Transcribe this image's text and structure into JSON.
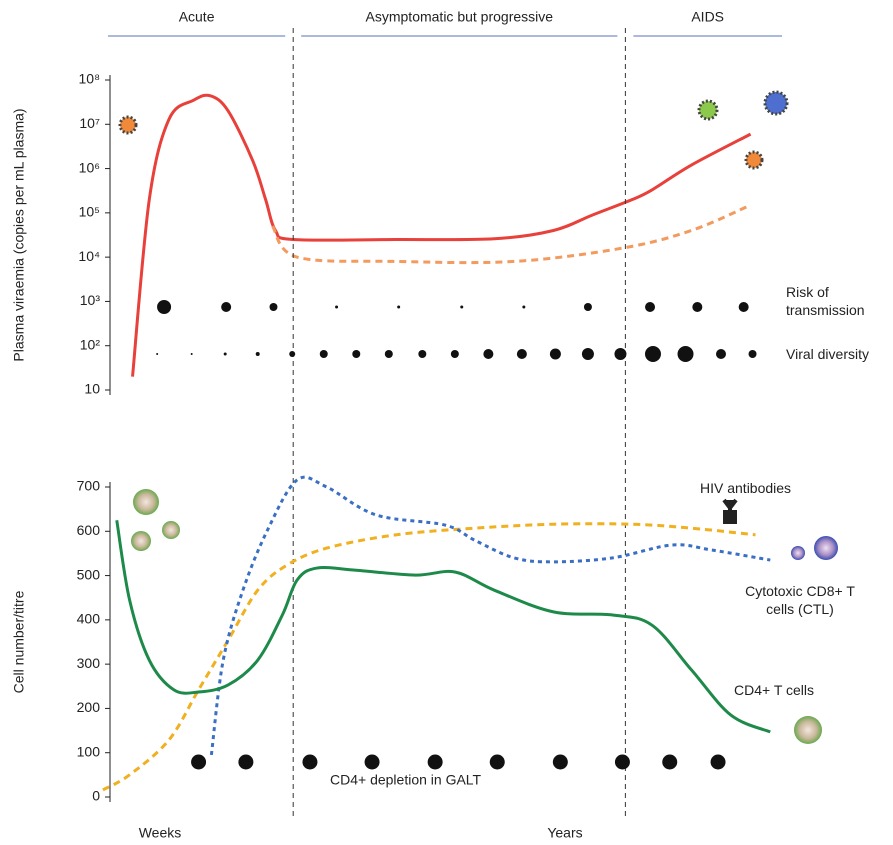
{
  "chart_data": [
    {
      "type": "line",
      "ylabel": "Plasma viraemia  (copies per mL plasma)",
      "log_scale": true,
      "ylim": [
        10,
        100000000
      ],
      "yticks": [
        {
          "value": 10,
          "label": "10"
        },
        {
          "value": 100,
          "label": "10²"
        },
        {
          "value": 1000,
          "label": "10³"
        },
        {
          "value": 10000,
          "label": "10⁴"
        },
        {
          "value": 100000,
          "label": "10⁵"
        },
        {
          "value": 1000000,
          "label": "10⁶"
        },
        {
          "value": 10000000,
          "label": "10⁷"
        },
        {
          "value": 100000000,
          "label": "10⁸"
        }
      ],
      "xlim": [
        0,
        700
      ],
      "phases": [
        "Acute",
        "Asymptomatic but progressive",
        "AIDS"
      ],
      "phase_boundaries": [
        196,
        533
      ],
      "series": [
        {
          "color": "#e8403a",
          "style": "solid",
          "x": [
            33,
            50,
            70,
            95,
            112,
            130,
            155,
            168,
            178,
            196,
            300,
            400,
            460,
            500,
            540,
            560,
            600,
            660
          ],
          "values": [
            20,
            200000,
            13000000,
            35000000,
            44000000,
            20000000,
            1500000,
            200000,
            40000,
            25000,
            25000,
            26000,
            40000,
            90000,
            200000,
            330000,
            1200000,
            6000000
          ]
        },
        {
          "color": "#f39a5e",
          "style": "dashed",
          "x": [
            175,
            200,
            300,
            420,
            530,
            600,
            660
          ],
          "values": [
            50000,
            10000,
            8000,
            8000,
            16000,
            40000,
            150000
          ]
        }
      ],
      "dot_rows": [
        {
          "name": "Risk of transmission",
          "x": [
            65,
            128,
            176,
            240,
            303,
            367,
            430,
            495,
            558,
            606,
            653
          ],
          "values": [
            7,
            5,
            4,
            1.5,
            1.5,
            1.5,
            1.5,
            4,
            5,
            5,
            5
          ]
        },
        {
          "name": "Viral diversity",
          "x": [
            58,
            93,
            127,
            160,
            195,
            227,
            260,
            293,
            327,
            360,
            394,
            428,
            462,
            495,
            528,
            561,
            594,
            630,
            662
          ],
          "values": [
            1,
            1,
            1.5,
            2,
            3,
            4,
            4,
            4,
            4,
            4,
            5,
            5,
            5.5,
            6,
            6,
            8,
            8,
            5,
            4
          ]
        }
      ]
    },
    {
      "type": "line",
      "ylabel": "Cell number/titre",
      "ylim": [
        0,
        700
      ],
      "yticks": [
        0,
        100,
        200,
        300,
        400,
        500,
        600,
        700
      ],
      "xlim": [
        0,
        700
      ],
      "time_labels": [
        "Weeks",
        "Years"
      ],
      "series": [
        {
          "name": "HIV  antibodies",
          "color": "#f0b020",
          "style": "dashed",
          "x": [
            3,
            30,
            70,
            100,
            130,
            160,
            190,
            230,
            300,
            380,
            460,
            540,
            600,
            665
          ],
          "values": [
            16,
            50,
            129,
            242,
            354,
            467,
            524,
            562,
            592,
            607,
            616,
            616,
            607,
            592
          ]
        },
        {
          "name": "Cytotoxic CD8+ T cells (CTL)",
          "color": "#3a6fc4",
          "style": "dotted",
          "x": [
            113,
            125,
            145,
            170,
            200,
            230,
            280,
            350,
            380,
            420,
            460,
            520,
            580,
            620,
            680
          ],
          "values": [
            95,
            309,
            467,
            603,
            716,
            700,
            637,
            614,
            580,
            540,
            531,
            540,
            569,
            558,
            535
          ]
        },
        {
          "name": "CD4+ T cells",
          "color": "#1e8a4a",
          "style": "solid",
          "x": [
            17,
            30,
            50,
            75,
            100,
            130,
            160,
            185,
            200,
            220,
            260,
            320,
            360,
            400,
            460,
            520,
            560,
            600,
            640,
            680
          ],
          "values": [
            625,
            445,
            309,
            242,
            237,
            253,
            309,
            411,
            490,
            517,
            512,
            501,
            508,
            467,
            418,
            411,
            388,
            287,
            185,
            147
          ]
        }
      ],
      "dot_row": {
        "name": "CD4+ depletion in GALT",
        "x": [
          100,
          148,
          213,
          276,
          340,
          403,
          467,
          530,
          578,
          627
        ]
      }
    }
  ]
}
